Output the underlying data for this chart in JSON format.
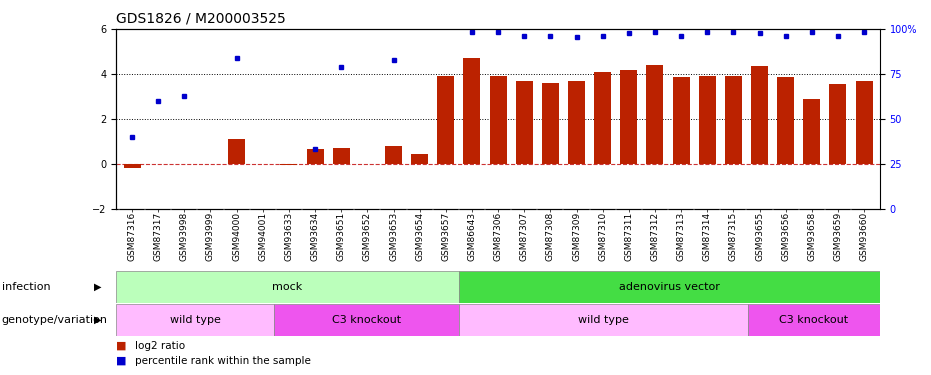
{
  "title": "GDS1826 / M200003525",
  "samples": [
    "GSM87316",
    "GSM87317",
    "GSM93998",
    "GSM93999",
    "GSM94000",
    "GSM94001",
    "GSM93633",
    "GSM93634",
    "GSM93651",
    "GSM93652",
    "GSM93653",
    "GSM93654",
    "GSM93657",
    "GSM86643",
    "GSM87306",
    "GSM87307",
    "GSM87308",
    "GSM87309",
    "GSM87310",
    "GSM87311",
    "GSM87312",
    "GSM87313",
    "GSM87314",
    "GSM87315",
    "GSM93655",
    "GSM93656",
    "GSM93658",
    "GSM93659",
    "GSM93660"
  ],
  "log2_ratio": [
    -0.2,
    0.0,
    0.0,
    0.0,
    1.1,
    0.0,
    -0.05,
    0.65,
    0.7,
    0.0,
    0.8,
    0.45,
    3.9,
    4.7,
    3.9,
    3.7,
    3.6,
    3.7,
    4.1,
    4.15,
    4.4,
    3.85,
    3.9,
    3.9,
    4.35,
    3.85,
    2.9,
    3.55,
    3.7
  ],
  "percentile_rank_left": [
    1.2,
    2.8,
    3.0,
    null,
    4.7,
    null,
    null,
    0.65,
    4.3,
    null,
    4.6,
    null,
    null,
    5.85,
    5.85,
    5.7,
    5.7,
    5.65,
    5.7,
    5.8,
    5.85,
    5.7,
    5.85,
    5.85,
    5.8,
    5.7,
    5.85,
    5.7,
    5.85
  ],
  "infection_groups": [
    {
      "label": "mock",
      "start": 0,
      "end": 13,
      "color": "#BBFFBB"
    },
    {
      "label": "adenovirus vector",
      "start": 13,
      "end": 29,
      "color": "#44DD44"
    }
  ],
  "genotype_groups": [
    {
      "label": "wild type",
      "start": 0,
      "end": 6,
      "color": "#FFBBFF"
    },
    {
      "label": "C3 knockout",
      "start": 6,
      "end": 13,
      "color": "#EE55EE"
    },
    {
      "label": "wild type",
      "start": 13,
      "end": 24,
      "color": "#FFBBFF"
    },
    {
      "label": "C3 knockout",
      "start": 24,
      "end": 29,
      "color": "#EE55EE"
    }
  ],
  "ylim_left": [
    -2.0,
    6.0
  ],
  "yticks_left": [
    -2,
    0,
    2,
    4,
    6
  ],
  "bar_color": "#BB2200",
  "dot_color": "#0000CC",
  "zero_line_color": "#CC3333",
  "infection_label": "infection",
  "genotype_label": "genotype/variation",
  "legend_bar": "log2 ratio",
  "legend_dot": "percentile rank within the sample",
  "title_fontsize": 10,
  "tick_fontsize": 7,
  "annot_fontsize": 8
}
